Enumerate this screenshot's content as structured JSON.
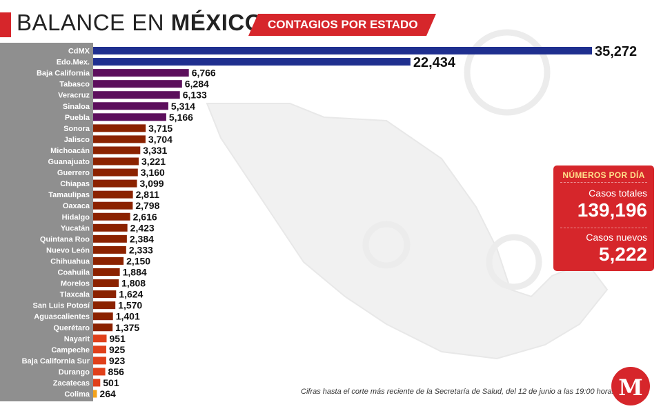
{
  "header": {
    "title_light": "BALANCE EN",
    "title_bold": "MÉXICO",
    "subtitle": "CONTAGIOS POR ESTADO"
  },
  "colors": {
    "accent_red": "#d6262b",
    "blue": "#1f2f8f",
    "purple": "#5c0f5c",
    "brown": "#8b2200",
    "orange_red": "#e0401a",
    "orange": "#f3a21b",
    "sidebar_gray": "#8f8f8f"
  },
  "stats": {
    "heading": "NÚMEROS POR DÍA",
    "total_label": "Casos totales",
    "total_value": "139,196",
    "new_label": "Casos nuevos",
    "new_value": "5,222"
  },
  "footer": {
    "note": "Cifras hasta el corte más reciente de la Secretaría de Salud, del 12 de junio a las 19:00 horas."
  },
  "logo": {
    "letter": "M",
    "icon": "milenio-logo-icon"
  },
  "chart_data": {
    "type": "bar",
    "orientation": "horizontal",
    "title": "CONTAGIOS POR ESTADO",
    "categories": [
      "CdMX",
      "Edo.Mex.",
      "Baja California",
      "Tabasco",
      "Veracruz",
      "Sinaloa",
      "Puebla",
      "Sonora",
      "Jalisco",
      "Michoacán",
      "Guanajuato",
      "Guerrero",
      "Chiapas",
      "Tamaulipas",
      "Oaxaca",
      "Hidalgo",
      "Yucatán",
      "Quintana Roo",
      "Nuevo León",
      "Chihuahua",
      "Coahuila",
      "Morelos",
      "Tlaxcala",
      "San Luis Potosí",
      "Aguascalientes",
      "Querétaro",
      "Nayarit",
      "Campeche",
      "Baja California Sur",
      "Durango",
      "Zacatecas",
      "Colima"
    ],
    "values": [
      35272,
      22434,
      6766,
      6284,
      6133,
      5314,
      5166,
      3715,
      3704,
      3331,
      3221,
      3160,
      3099,
      2811,
      2798,
      2616,
      2423,
      2384,
      2333,
      2150,
      1884,
      1808,
      1624,
      1570,
      1401,
      1375,
      951,
      925,
      923,
      856,
      501,
      264
    ],
    "value_labels": [
      "35,272",
      "22,434",
      "6,766",
      "6,284",
      "6,133",
      "5,314",
      "5,166",
      "3,715",
      "3,704",
      "3,331",
      "3,221",
      "3,160",
      "3,099",
      "2,811",
      "2,798",
      "2,616",
      "2,423",
      "2,384",
      "2,333",
      "2,150",
      "1,884",
      "1,808",
      "1,624",
      "1,570",
      "1,401",
      "1,375",
      "951",
      "925",
      "923",
      "856",
      "501",
      "264"
    ],
    "bar_color_groups": [
      "blue",
      "blue",
      "purple",
      "purple",
      "purple",
      "purple",
      "purple",
      "brown",
      "brown",
      "brown",
      "brown",
      "brown",
      "brown",
      "brown",
      "brown",
      "brown",
      "brown",
      "brown",
      "brown",
      "brown",
      "brown",
      "brown",
      "brown",
      "brown",
      "brown",
      "brown",
      "orange_red",
      "orange_red",
      "orange_red",
      "orange_red",
      "orange_red",
      "orange"
    ],
    "xlim": [
      0,
      35272
    ],
    "grid": false,
    "legend": "none"
  }
}
